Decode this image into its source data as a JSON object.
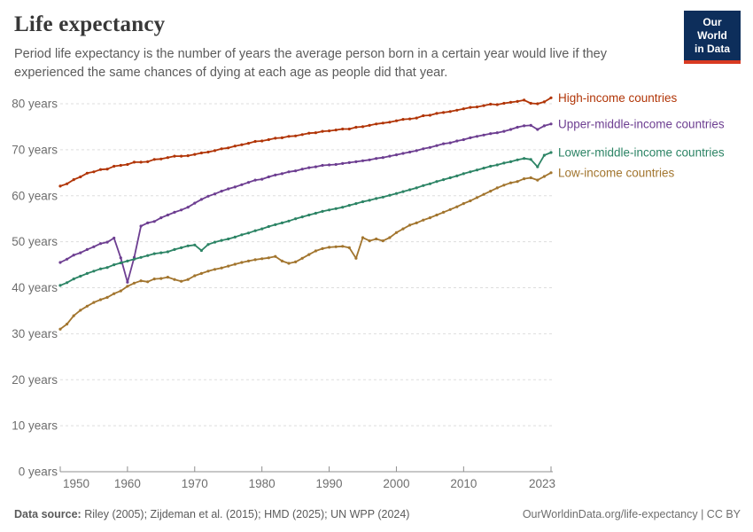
{
  "header": {
    "title": "Life expectancy",
    "subtitle": "Period life expectancy is the number of years the average person born in a certain year would live if they experienced the same chances of dying at each age as people did that year."
  },
  "logo": {
    "line1": "Our World",
    "line2": "in Data",
    "bg_color": "#0d2e5b",
    "accent_color": "#d93a22"
  },
  "chart_data": {
    "type": "line",
    "title": "Life expectancy",
    "xlabel": "",
    "ylabel": "",
    "ylim": [
      0,
      85
    ],
    "grid": "horizontal-dashed",
    "legend_position": "right-of-line-ends",
    "y_ticks": [
      0,
      10,
      20,
      30,
      40,
      50,
      60,
      70,
      80
    ],
    "y_tick_suffix": " years",
    "x_ticks": [
      1950,
      1960,
      1970,
      1980,
      1990,
      2000,
      2010,
      2023
    ],
    "years": [
      1950,
      1951,
      1952,
      1953,
      1954,
      1955,
      1956,
      1957,
      1958,
      1959,
      1960,
      1961,
      1962,
      1963,
      1964,
      1965,
      1966,
      1967,
      1968,
      1969,
      1970,
      1971,
      1972,
      1973,
      1974,
      1975,
      1976,
      1977,
      1978,
      1979,
      1980,
      1981,
      1982,
      1983,
      1984,
      1985,
      1986,
      1987,
      1988,
      1989,
      1990,
      1991,
      1992,
      1993,
      1994,
      1995,
      1996,
      1997,
      1998,
      1999,
      2000,
      2001,
      2002,
      2003,
      2004,
      2005,
      2006,
      2007,
      2008,
      2009,
      2010,
      2011,
      2012,
      2013,
      2014,
      2015,
      2016,
      2017,
      2018,
      2019,
      2020,
      2021,
      2022,
      2023
    ],
    "series": [
      {
        "name": "High-income countries",
        "color": "#B13507",
        "values": [
          62.1,
          62.6,
          63.5,
          64.1,
          64.9,
          65.2,
          65.7,
          65.8,
          66.4,
          66.6,
          66.8,
          67.3,
          67.3,
          67.4,
          67.9,
          68.0,
          68.3,
          68.6,
          68.6,
          68.7,
          69.0,
          69.3,
          69.5,
          69.8,
          70.2,
          70.4,
          70.8,
          71.1,
          71.4,
          71.8,
          71.9,
          72.2,
          72.5,
          72.6,
          72.9,
          73.0,
          73.3,
          73.6,
          73.7,
          74.0,
          74.1,
          74.3,
          74.5,
          74.5,
          74.9,
          75.0,
          75.3,
          75.6,
          75.8,
          76.0,
          76.3,
          76.6,
          76.7,
          76.9,
          77.4,
          77.5,
          77.9,
          78.1,
          78.3,
          78.6,
          78.9,
          79.2,
          79.3,
          79.6,
          79.9,
          79.8,
          80.1,
          80.3,
          80.5,
          80.8,
          80.1,
          80.0,
          80.4,
          81.3
        ]
      },
      {
        "name": "Upper-middle-income countries",
        "color": "#6D3E91",
        "values": [
          45.5,
          46.2,
          47.1,
          47.6,
          48.3,
          48.9,
          49.6,
          49.9,
          50.8,
          46.5,
          41.2,
          46.6,
          53.4,
          54.1,
          54.4,
          55.2,
          55.8,
          56.4,
          56.9,
          57.5,
          58.4,
          59.2,
          59.9,
          60.4,
          61.0,
          61.5,
          61.9,
          62.4,
          62.9,
          63.4,
          63.6,
          64.1,
          64.5,
          64.8,
          65.2,
          65.4,
          65.8,
          66.1,
          66.3,
          66.6,
          66.7,
          66.8,
          67.0,
          67.2,
          67.4,
          67.6,
          67.8,
          68.1,
          68.3,
          68.6,
          68.9,
          69.2,
          69.5,
          69.8,
          70.2,
          70.5,
          70.9,
          71.3,
          71.5,
          71.9,
          72.2,
          72.6,
          72.9,
          73.2,
          73.5,
          73.7,
          74.0,
          74.4,
          74.9,
          75.2,
          75.3,
          74.4,
          75.2,
          75.6
        ]
      },
      {
        "name": "Lower-middle-income countries",
        "color": "#2C8465",
        "values": [
          40.5,
          41.1,
          41.9,
          42.5,
          43.1,
          43.6,
          44.1,
          44.4,
          45.0,
          45.4,
          45.8,
          46.2,
          46.6,
          47.0,
          47.4,
          47.6,
          47.8,
          48.3,
          48.7,
          49.1,
          49.3,
          48.1,
          49.4,
          49.9,
          50.3,
          50.6,
          51.0,
          51.5,
          51.9,
          52.4,
          52.8,
          53.3,
          53.7,
          54.1,
          54.5,
          55.0,
          55.4,
          55.8,
          56.2,
          56.6,
          56.9,
          57.2,
          57.5,
          57.9,
          58.3,
          58.7,
          59.0,
          59.4,
          59.7,
          60.1,
          60.5,
          60.9,
          61.3,
          61.7,
          62.2,
          62.6,
          63.1,
          63.5,
          63.9,
          64.3,
          64.8,
          65.2,
          65.6,
          66.0,
          66.4,
          66.7,
          67.1,
          67.4,
          67.8,
          68.1,
          67.9,
          66.3,
          68.8,
          69.4
        ]
      },
      {
        "name": "Low-income countries",
        "color": "#A2752E",
        "values": [
          31.0,
          32.1,
          33.9,
          35.1,
          36.0,
          36.8,
          37.4,
          37.9,
          38.7,
          39.3,
          40.3,
          41.0,
          41.5,
          41.3,
          41.9,
          42.0,
          42.3,
          41.8,
          41.4,
          41.8,
          42.6,
          43.1,
          43.6,
          44.0,
          44.3,
          44.7,
          45.1,
          45.5,
          45.8,
          46.1,
          46.3,
          46.5,
          46.8,
          45.8,
          45.3,
          45.6,
          46.4,
          47.2,
          48.0,
          48.5,
          48.8,
          48.9,
          49.0,
          48.7,
          46.4,
          50.9,
          50.2,
          50.6,
          50.2,
          50.9,
          52.0,
          52.8,
          53.6,
          54.1,
          54.7,
          55.2,
          55.8,
          56.4,
          57.0,
          57.6,
          58.3,
          58.9,
          59.6,
          60.3,
          61.0,
          61.7,
          62.3,
          62.8,
          63.1,
          63.7,
          63.9,
          63.4,
          64.2,
          65.0
        ]
      }
    ]
  },
  "footer": {
    "datasource_label": "Data source:",
    "datasource_text": " Riley (2005); Zijdeman et al. (2015); HMD (2025); UN WPP (2024)",
    "link_text": "OurWorldinData.org/life-expectancy | CC BY"
  }
}
